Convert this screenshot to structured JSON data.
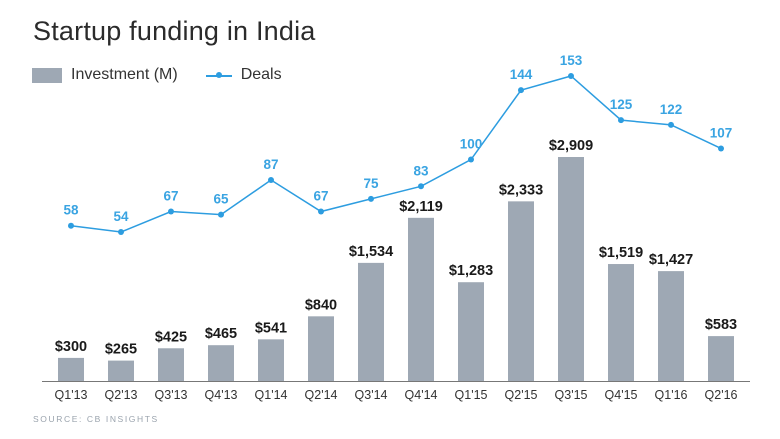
{
  "chart_data": {
    "type": "bar",
    "title": "Startup funding in India",
    "source": "SOURCE: CB INSIGHTS",
    "categories": [
      "Q1'13",
      "Q2'13",
      "Q3'13",
      "Q4'13",
      "Q1'14",
      "Q2'14",
      "Q3'14",
      "Q4'14",
      "Q1'15",
      "Q2'15",
      "Q3'15",
      "Q4'15",
      "Q1'16",
      "Q2'16"
    ],
    "series": [
      {
        "name": "Investment (M)",
        "type": "bar",
        "values": [
          300,
          265,
          425,
          465,
          541,
          840,
          1534,
          2119,
          1283,
          2333,
          2909,
          1519,
          1427,
          583
        ],
        "labels": [
          "$300",
          "$265",
          "$425",
          "$465",
          "$541",
          "$840",
          "$1,534",
          "$2,119",
          "$1,283",
          "$2,333",
          "$2,909",
          "$1,519",
          "$1,427",
          "$583"
        ],
        "color": "#9ea8b4"
      },
      {
        "name": "Deals",
        "type": "line",
        "values": [
          58,
          54,
          67,
          65,
          87,
          67,
          75,
          83,
          100,
          144,
          153,
          125,
          122,
          107
        ],
        "labels": [
          "58",
          "54",
          "67",
          "65",
          "87",
          "67",
          "75",
          "83",
          "100",
          "144",
          "153",
          "125",
          "122",
          "107"
        ],
        "color": "#2d9de0"
      }
    ],
    "xlabel": "",
    "ylabel": "",
    "ylim": [
      0,
      2909
    ],
    "deals_ylim": [
      54,
      153
    ],
    "grid": false,
    "legend_position": "top-left"
  }
}
